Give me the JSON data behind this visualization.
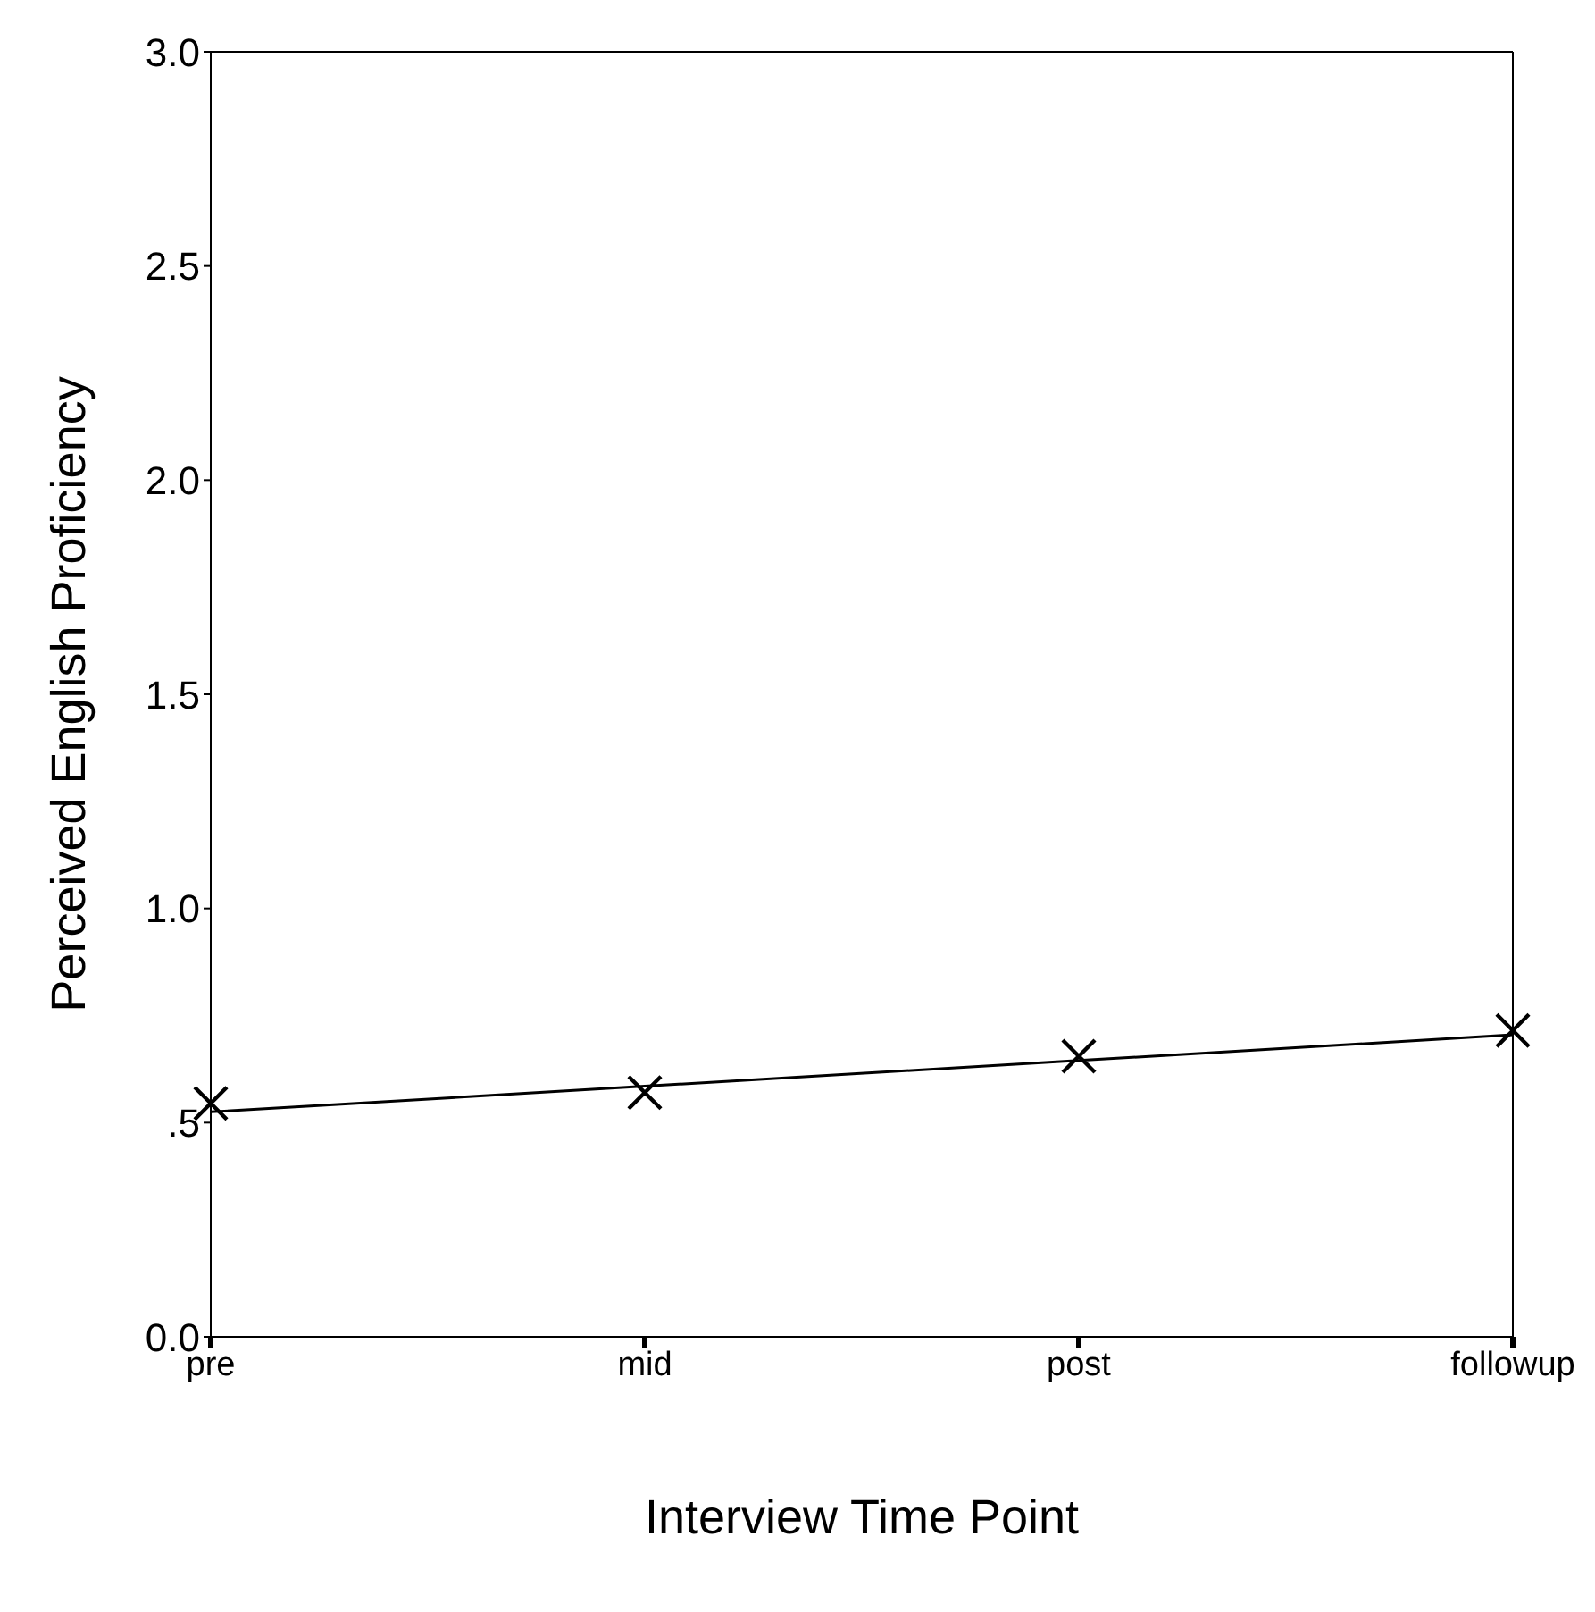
{
  "chart_data": {
    "type": "line",
    "xlabel": "Interview Time Point",
    "ylabel": "Perceived English Proficiency",
    "categories": [
      "pre",
      "mid",
      "post",
      "followup"
    ],
    "series": [
      {
        "color": "#000000",
        "values": [
          0.525,
          0.585,
          0.645,
          0.705
        ],
        "marker": "none"
      },
      {
        "type": "scatter",
        "color": "#000000",
        "values": [
          0.545,
          0.57,
          0.655,
          0.715
        ],
        "marker": "cross"
      }
    ],
    "ylim": [
      0,
      3
    ],
    "yticks": [
      {
        "value": 0,
        "label": "0.0"
      },
      {
        "value": 0.5,
        "label": ".5"
      },
      {
        "value": 1,
        "label": "1.0"
      },
      {
        "value": 1.5,
        "label": "1.5"
      },
      {
        "value": 2,
        "label": "2.0"
      },
      {
        "value": 2.5,
        "label": "2.5"
      },
      {
        "value": 3,
        "label": "3.0"
      }
    ],
    "grid": false
  }
}
